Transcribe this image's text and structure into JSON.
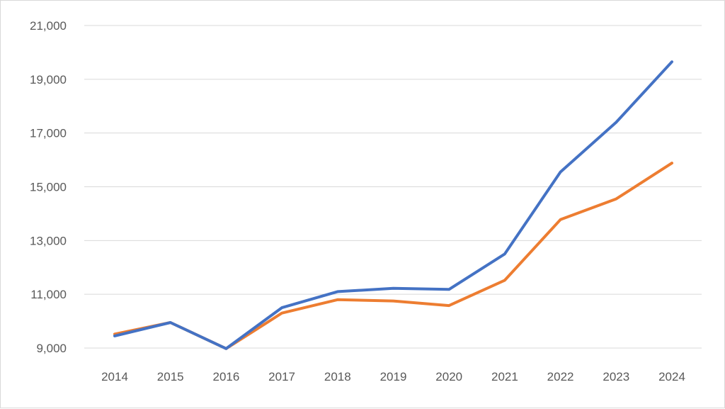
{
  "chart_data": {
    "type": "line",
    "title": "",
    "xlabel": "",
    "ylabel": "",
    "categories": [
      "2014",
      "2015",
      "2016",
      "2017",
      "2018",
      "2019",
      "2020",
      "2021",
      "2022",
      "2023",
      "2024"
    ],
    "series": [
      {
        "color": "#4472c4",
        "values": [
          9450,
          9950,
          8980,
          10500,
          11100,
          11220,
          11180,
          12500,
          15550,
          17400,
          19650
        ]
      },
      {
        "color": "#ed7d31",
        "values": [
          9520,
          9950,
          8980,
          10300,
          10800,
          10750,
          10580,
          11520,
          13780,
          14550,
          15880
        ]
      }
    ],
    "ylim": [
      9000,
      21000
    ],
    "yticks": [
      9000,
      11000,
      13000,
      15000,
      17000,
      19000,
      21000
    ],
    "ytick_labels": [
      "9,000",
      "11,000",
      "13,000",
      "15,000",
      "17,000",
      "19,000",
      "21,000"
    ],
    "grid": true,
    "legend": "none"
  }
}
